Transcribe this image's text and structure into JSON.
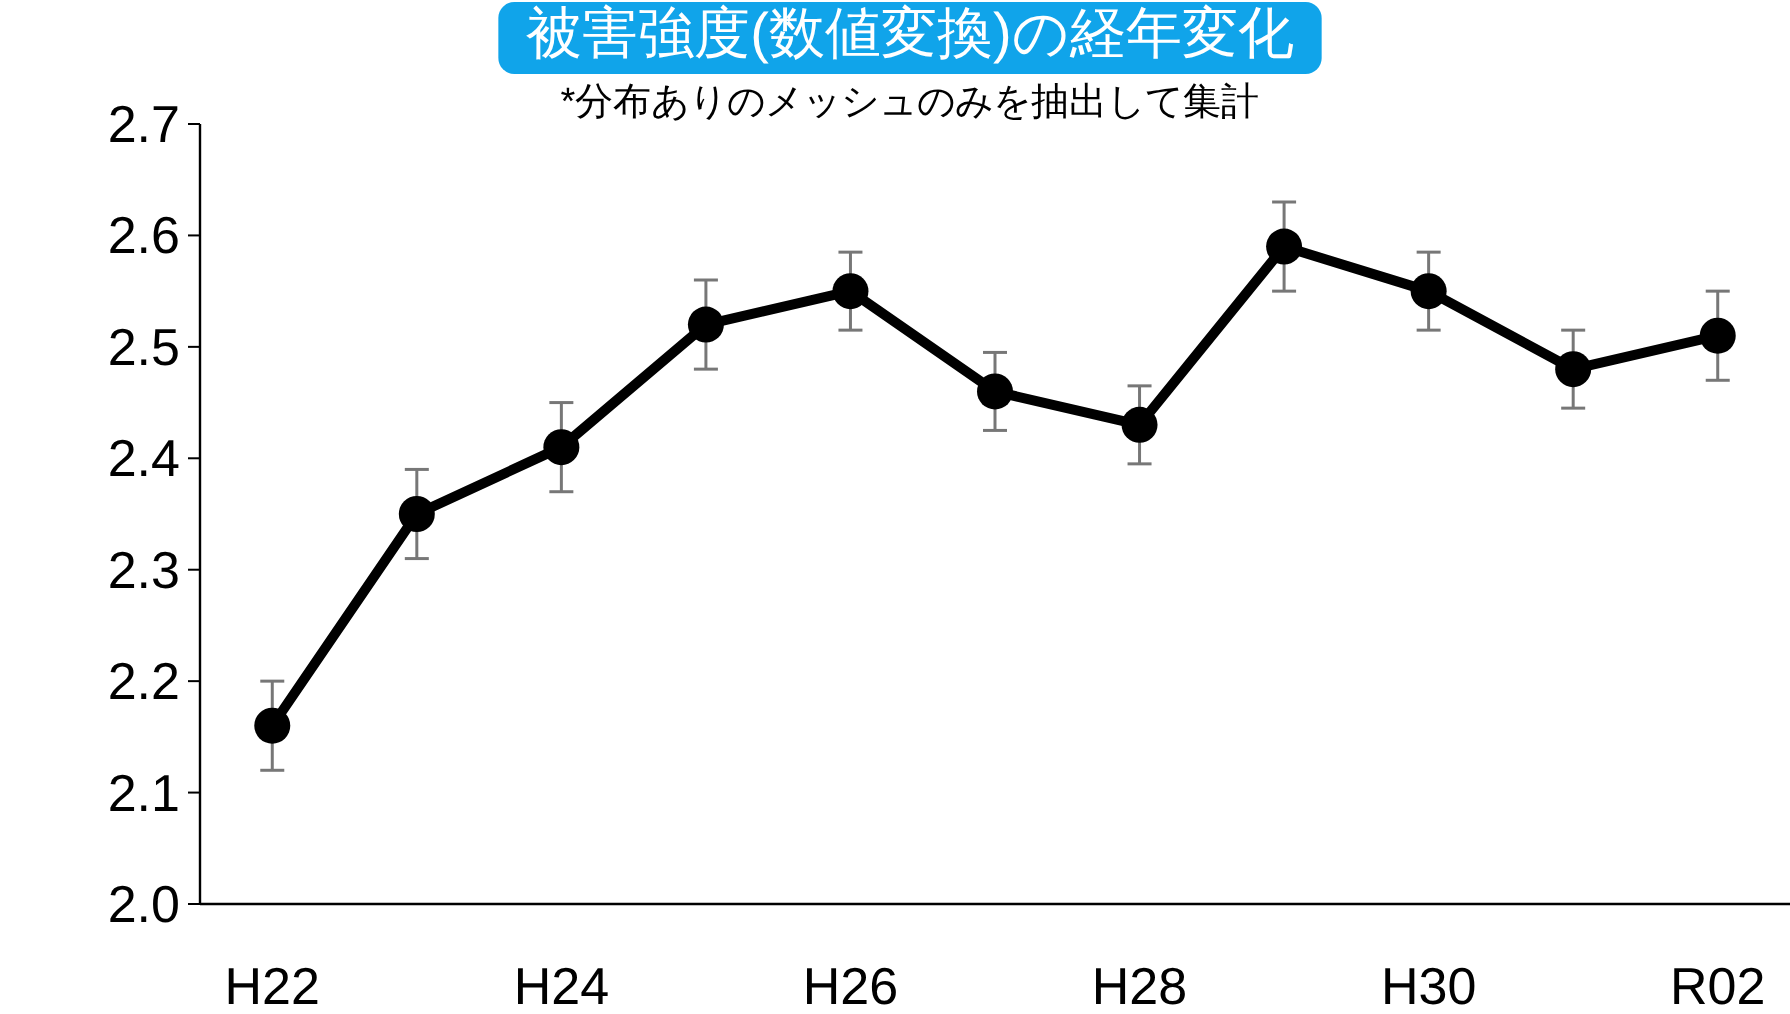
{
  "chart_data": {
    "type": "line",
    "title": "被害強度(数値変換)の経年変化",
    "subtitle": "*分布ありのメッシュのみを抽出して集計",
    "categories": [
      "H22",
      null,
      "H24",
      null,
      "H26",
      null,
      "H28",
      null,
      "H30",
      null,
      "R02"
    ],
    "series": [
      {
        "color": "#000000",
        "values": [
          2.16,
          2.35,
          2.41,
          2.52,
          2.55,
          2.46,
          2.43,
          2.59,
          2.55,
          2.48,
          2.51
        ],
        "errors": [
          0.04,
          0.04,
          0.04,
          0.04,
          0.035,
          0.035,
          0.035,
          0.04,
          0.035,
          0.035,
          0.04
        ]
      }
    ],
    "ylim": [
      2.0,
      2.7
    ],
    "yticks": [
      {
        "value": 2.0,
        "label": "2.0"
      },
      2.1,
      2.2,
      2.3,
      2.4,
      2.5,
      2.6,
      2.7
    ],
    "grid": false,
    "marker": "circle",
    "line_style": "solid"
  }
}
